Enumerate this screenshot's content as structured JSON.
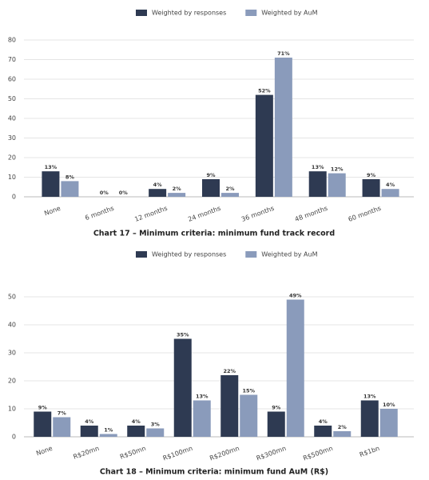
{
  "chart_data": [
    {
      "type": "bar",
      "title": "Chart 17 – Minimum criteria: minimum fund track record",
      "categories": [
        "None",
        "6 months",
        "12 months",
        "24 months",
        "36 months",
        "48 months",
        "60 months"
      ],
      "series": [
        {
          "name": "Weighted by responses",
          "color": "#2e3a52",
          "values": [
            13,
            0,
            4,
            9,
            52,
            13,
            9
          ],
          "value_labels": [
            "13%",
            "0%",
            "4%",
            "9%",
            "52%",
            "13%",
            "9%"
          ]
        },
        {
          "name": "Weighted by AuM",
          "color": "#8a9bbb",
          "values": [
            8,
            0,
            2,
            2,
            71,
            12,
            4
          ],
          "value_labels": [
            "8%",
            "0%",
            "2%",
            "2%",
            "71%",
            "12%",
            "4%"
          ]
        }
      ],
      "ylim": [
        0,
        80
      ],
      "yticks": [
        0,
        10,
        20,
        30,
        40,
        50,
        60,
        70,
        80
      ],
      "grid": true,
      "legend": "top"
    },
    {
      "type": "bar",
      "title": "Chart 18 – Minimum criteria: minimum fund AuM (R$)",
      "categories": [
        "None",
        "R$20mn",
        "R$50mn",
        "R$100mn",
        "R$200mn",
        "R$300mn",
        "R$500mn",
        "R$1bn"
      ],
      "series": [
        {
          "name": "Weighted by responses",
          "color": "#2e3a52",
          "values": [
            9,
            4,
            4,
            35,
            22,
            9,
            4,
            13
          ],
          "value_labels": [
            "9%",
            "4%",
            "4%",
            "35%",
            "22%",
            "9%",
            "4%",
            "13%"
          ]
        },
        {
          "name": "Weighted by AuM",
          "color": "#8a9bbb",
          "values": [
            7,
            1,
            3,
            13,
            15,
            49,
            2,
            10
          ],
          "value_labels": [
            "7%",
            "1%",
            "3%",
            "13%",
            "15%",
            "49%",
            "2%",
            "10%"
          ]
        }
      ],
      "ylim": [
        0,
        50
      ],
      "yticks": [
        0,
        10,
        20,
        30,
        40,
        50
      ],
      "grid": true,
      "legend": "top"
    }
  ]
}
